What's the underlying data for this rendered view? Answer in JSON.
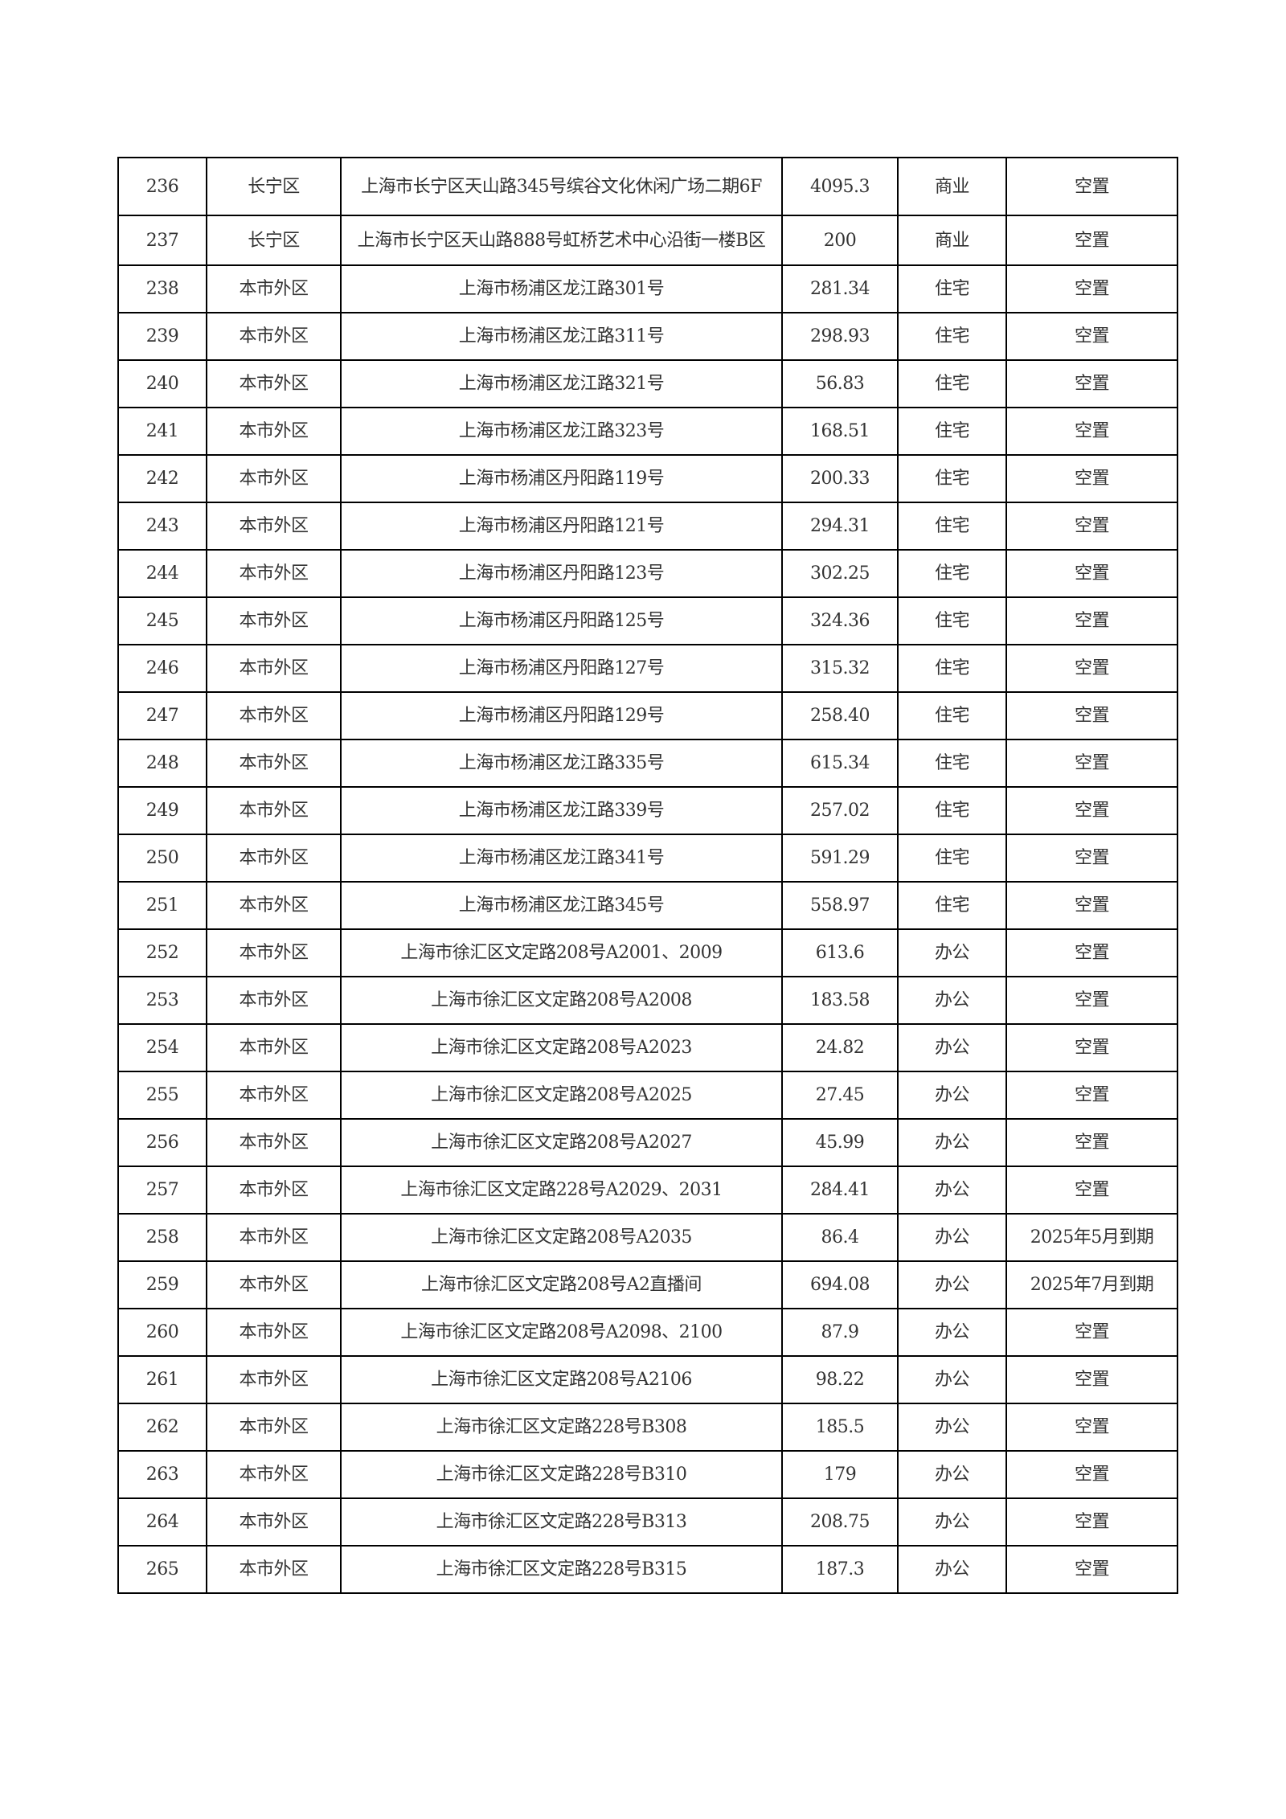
{
  "rows": [
    [
      "236",
      "长宁区",
      "上海市长宁区天山路345号缤谷文化休闲广场二期6F",
      "4095.3",
      "商业",
      "空置"
    ],
    [
      "237",
      "长宁区",
      "上海市长宁区天山路888号虹桥艺术中心沿街一楼B区",
      "200",
      "商业",
      "空置"
    ],
    [
      "238",
      "本市外区",
      "上海市杨浦区龙江路301号",
      "281.34",
      "住宅",
      "空置"
    ],
    [
      "239",
      "本市外区",
      "上海市杨浦区龙江路311号",
      "298.93",
      "住宅",
      "空置"
    ],
    [
      "240",
      "本市外区",
      "上海市杨浦区龙江路321号",
      "56.83",
      "住宅",
      "空置"
    ],
    [
      "241",
      "本市外区",
      "上海市杨浦区龙江路323号",
      "168.51",
      "住宅",
      "空置"
    ],
    [
      "242",
      "本市外区",
      "上海市杨浦区丹阳路119号",
      "200.33",
      "住宅",
      "空置"
    ],
    [
      "243",
      "本市外区",
      "上海市杨浦区丹阳路121号",
      "294.31",
      "住宅",
      "空置"
    ],
    [
      "244",
      "本市外区",
      "上海市杨浦区丹阳路123号",
      "302.25",
      "住宅",
      "空置"
    ],
    [
      "245",
      "本市外区",
      "上海市杨浦区丹阳路125号",
      "324.36",
      "住宅",
      "空置"
    ],
    [
      "246",
      "本市外区",
      "上海市杨浦区丹阳路127号",
      "315.32",
      "住宅",
      "空置"
    ],
    [
      "247",
      "本市外区",
      "上海市杨浦区丹阳路129号",
      "258.40",
      "住宅",
      "空置"
    ],
    [
      "248",
      "本市外区",
      "上海市杨浦区龙江路335号",
      "615.34",
      "住宅",
      "空置"
    ],
    [
      "249",
      "本市外区",
      "上海市杨浦区龙江路339号",
      "257.02",
      "住宅",
      "空置"
    ],
    [
      "250",
      "本市外区",
      "上海市杨浦区龙江路341号",
      "591.29",
      "住宅",
      "空置"
    ],
    [
      "251",
      "本市外区",
      "上海市杨浦区龙江路345号",
      "558.97",
      "住宅",
      "空置"
    ],
    [
      "252",
      "本市外区",
      "上海市徐汇区文定路208号A2001、2009",
      "613.6",
      "办公",
      "空置"
    ],
    [
      "253",
      "本市外区",
      "上海市徐汇区文定路208号A2008",
      "183.58",
      "办公",
      "空置"
    ],
    [
      "254",
      "本市外区",
      "上海市徐汇区文定路208号A2023",
      "24.82",
      "办公",
      "空置"
    ],
    [
      "255",
      "本市外区",
      "上海市徐汇区文定路208号A2025",
      "27.45",
      "办公",
      "空置"
    ],
    [
      "256",
      "本市外区",
      "上海市徐汇区文定路208号A2027",
      "45.99",
      "办公",
      "空置"
    ],
    [
      "257",
      "本市外区",
      "上海市徐汇区文定路228号A2029、2031",
      "284.41",
      "办公",
      "空置"
    ],
    [
      "258",
      "本市外区",
      "上海市徐汇区文定路208号A2035",
      "86.4",
      "办公",
      "2025年5月到期"
    ],
    [
      "259",
      "本市外区",
      "上海市徐汇区文定路208号A2直播间",
      "694.08",
      "办公",
      "2025年7月到期"
    ],
    [
      "260",
      "本市外区",
      "上海市徐汇区文定路208号A2098、2100",
      "87.9",
      "办公",
      "空置"
    ],
    [
      "261",
      "本市外区",
      "上海市徐汇区文定路208号A2106",
      "98.22",
      "办公",
      "空置"
    ],
    [
      "262",
      "本市外区",
      "上海市徐汇区文定路228号B308",
      "185.5",
      "办公",
      "空置"
    ],
    [
      "263",
      "本市外区",
      "上海市徐汇区文定路228号B310",
      "179",
      "办公",
      "空置"
    ],
    [
      "264",
      "本市外区",
      "上海市徐汇区文定路228号B313",
      "208.75",
      "办公",
      "空置"
    ],
    [
      "265",
      "本市外区",
      "上海市徐汇区文定路228号B315",
      "187.3",
      "办公",
      "空置"
    ]
  ]
}
